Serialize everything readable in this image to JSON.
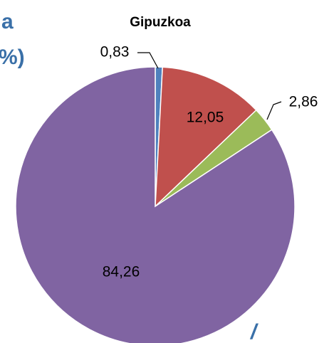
{
  "chart_data": {
    "type": "pie",
    "title": "Gipuzkoa",
    "categories": [
      null,
      null,
      null,
      null
    ],
    "values": [
      0.83,
      12.05,
      2.86,
      84.26
    ],
    "value_labels": [
      "0,83",
      "12,05",
      "2,86",
      "84,26"
    ],
    "colors": [
      "#4f81bd",
      "#c0504d",
      "#9bbb59",
      "#8064a2"
    ]
  },
  "cropped_text": [
    "a",
    "%)",
    "/"
  ]
}
